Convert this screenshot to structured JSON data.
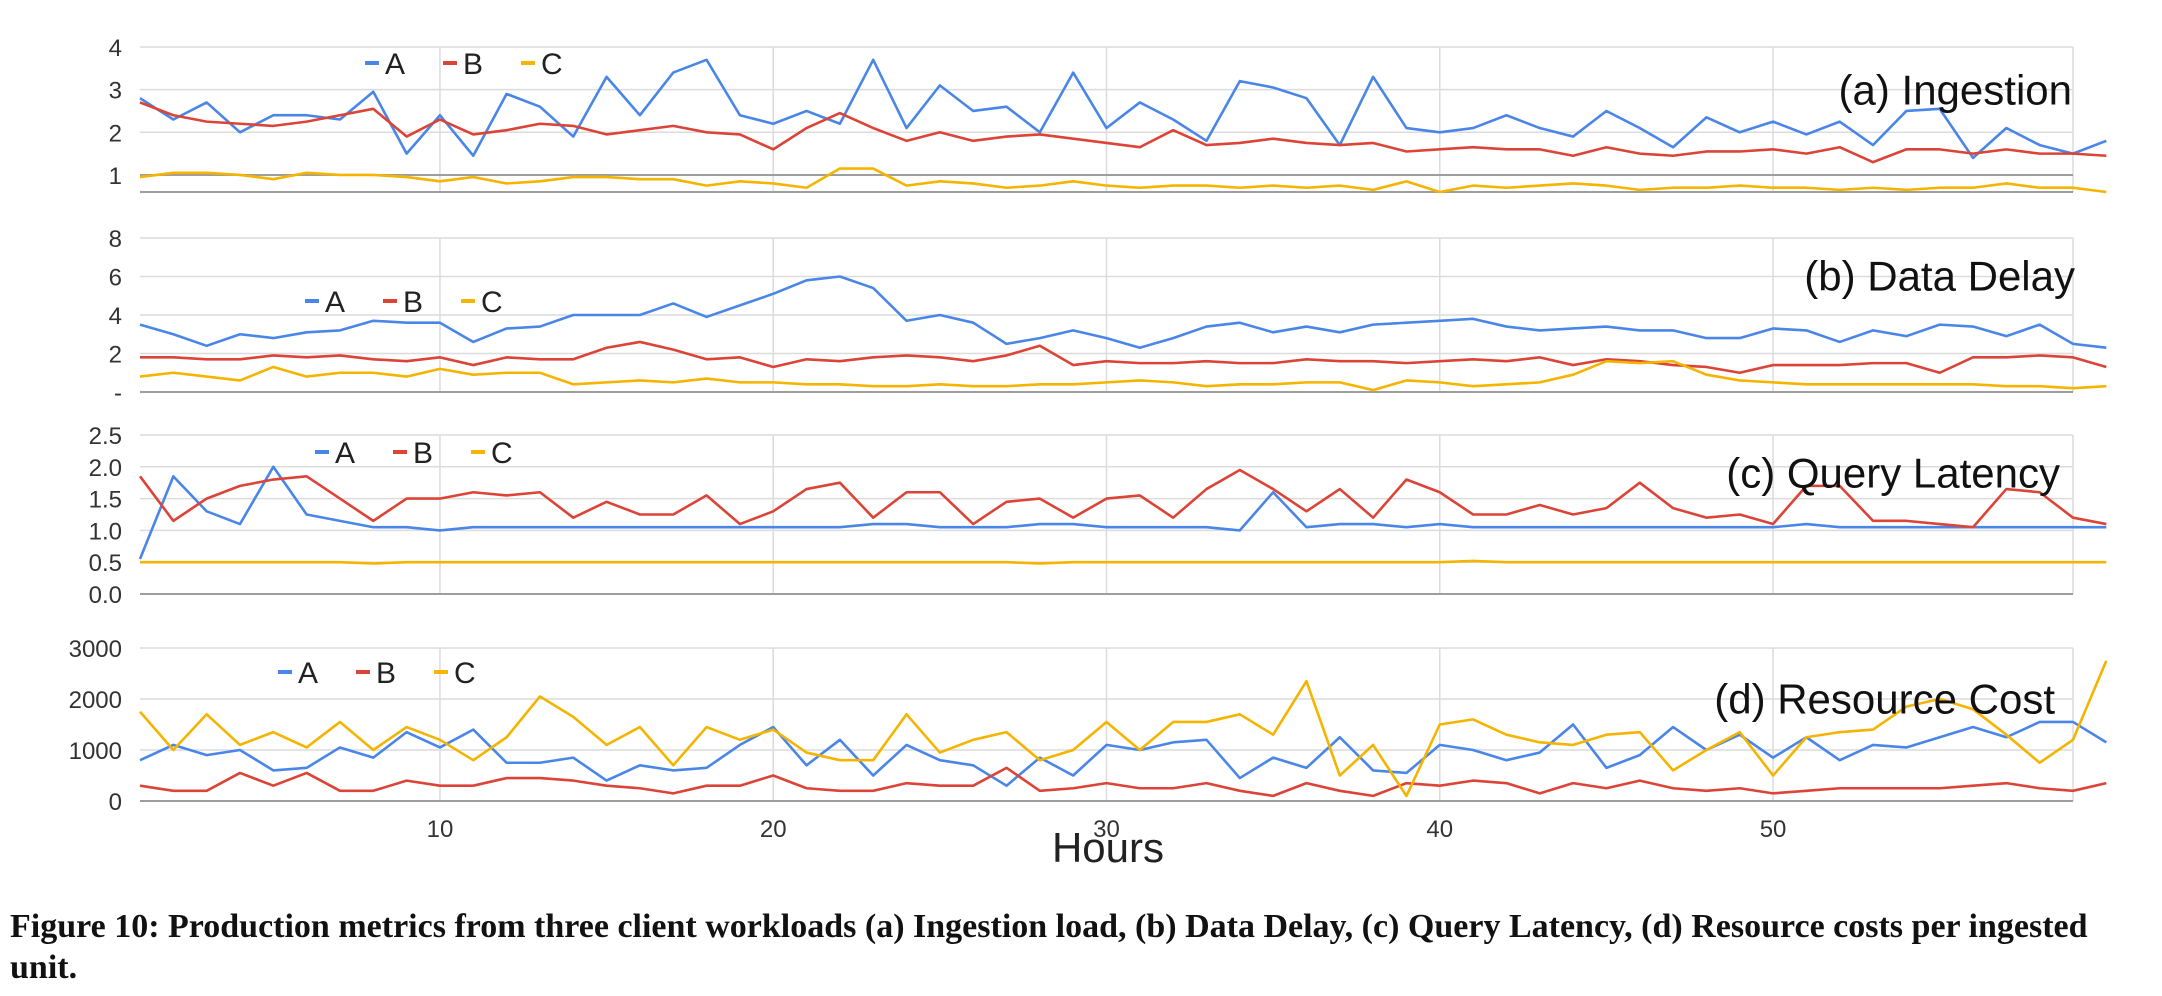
{
  "caption": "Figure 10: Production metrics from three client workloads (a) Ingestion load, (b) Data Delay, (c) Query Latency, (d) Resource costs per ingested unit.",
  "colors": {
    "A": "#4a86e8",
    "B": "#db4437",
    "C": "#f4b400",
    "grid": "#dcdcdc",
    "axis": "#9e9e9e"
  },
  "chart_data": [
    {
      "type": "line",
      "title": "(a) Ingestion",
      "xlabel": "Hours",
      "ylabel": "",
      "xlim": [
        1,
        59
      ],
      "ylim": [
        0.6,
        4
      ],
      "yticks": [
        "4",
        "3",
        "2",
        "1"
      ],
      "ytick_values": [
        4,
        3,
        2,
        1
      ],
      "xticks": [
        10,
        20,
        30,
        40,
        50
      ],
      "grid": true,
      "legend": "top-left",
      "series": [
        {
          "name": "A",
          "values": [
            2.8,
            2.3,
            2.7,
            2.0,
            2.4,
            2.4,
            2.3,
            2.95,
            1.5,
            2.4,
            1.45,
            2.9,
            2.6,
            1.9,
            3.3,
            2.4,
            3.4,
            3.7,
            2.4,
            2.2,
            2.5,
            2.2,
            3.7,
            2.1,
            3.1,
            2.5,
            2.6,
            2.0,
            3.4,
            2.1,
            2.7,
            2.3,
            1.8,
            3.2,
            3.05,
            2.8,
            1.7,
            3.3,
            2.1,
            2.0,
            2.1,
            2.4,
            2.1,
            1.9,
            2.5,
            2.1,
            1.65,
            2.35,
            2.0,
            2.25,
            1.95,
            2.25,
            1.7,
            2.5,
            2.55,
            1.4,
            2.1,
            1.7,
            1.5,
            1.8
          ]
        },
        {
          "name": "B",
          "values": [
            2.7,
            2.4,
            2.25,
            2.2,
            2.15,
            2.25,
            2.4,
            2.55,
            1.9,
            2.3,
            1.95,
            2.05,
            2.2,
            2.15,
            1.95,
            2.05,
            2.15,
            2.0,
            1.95,
            1.6,
            2.1,
            2.45,
            2.1,
            1.8,
            2.0,
            1.8,
            1.9,
            1.95,
            1.85,
            1.75,
            1.65,
            2.05,
            1.7,
            1.75,
            1.85,
            1.75,
            1.7,
            1.75,
            1.55,
            1.6,
            1.65,
            1.6,
            1.6,
            1.45,
            1.65,
            1.5,
            1.45,
            1.55,
            1.55,
            1.6,
            1.5,
            1.65,
            1.3,
            1.6,
            1.6,
            1.5,
            1.6,
            1.5,
            1.5,
            1.45
          ]
        },
        {
          "name": "C",
          "values": [
            0.95,
            1.05,
            1.05,
            1.0,
            0.9,
            1.05,
            1.0,
            1.0,
            0.95,
            0.85,
            0.95,
            0.8,
            0.85,
            0.95,
            0.95,
            0.9,
            0.9,
            0.75,
            0.85,
            0.8,
            0.7,
            1.15,
            1.15,
            0.75,
            0.85,
            0.8,
            0.7,
            0.75,
            0.85,
            0.75,
            0.7,
            0.75,
            0.75,
            0.7,
            0.75,
            0.7,
            0.75,
            0.65,
            0.85,
            0.6,
            0.75,
            0.7,
            0.75,
            0.8,
            0.75,
            0.65,
            0.7,
            0.7,
            0.75,
            0.7,
            0.7,
            0.65,
            0.7,
            0.65,
            0.7,
            0.7,
            0.8,
            0.7,
            0.7,
            0.6
          ]
        }
      ]
    },
    {
      "type": "line",
      "title": "(b) Data Delay",
      "xlabel": "Hours",
      "ylabel": "",
      "xlim": [
        1,
        59
      ],
      "ylim": [
        0,
        8
      ],
      "yticks": [
        "8",
        "6",
        "4",
        "2",
        "-"
      ],
      "ytick_values": [
        8,
        6,
        4,
        2,
        0
      ],
      "xticks": [
        10,
        20,
        30,
        40,
        50
      ],
      "grid": true,
      "legend": "top-left",
      "series": [
        {
          "name": "A",
          "values": [
            3.5,
            3.0,
            2.4,
            3.0,
            2.8,
            3.1,
            3.2,
            3.7,
            3.6,
            3.6,
            2.6,
            3.3,
            3.4,
            4.0,
            4.0,
            4.0,
            4.6,
            3.9,
            4.5,
            5.1,
            5.8,
            6.0,
            5.4,
            3.7,
            4.0,
            3.6,
            2.5,
            2.8,
            3.2,
            2.8,
            2.3,
            2.8,
            3.4,
            3.6,
            3.1,
            3.4,
            3.1,
            3.5,
            3.6,
            3.7,
            3.8,
            3.4,
            3.2,
            3.3,
            3.4,
            3.2,
            3.2,
            2.8,
            2.8,
            3.3,
            3.2,
            2.6,
            3.2,
            2.9,
            3.5,
            3.4,
            2.9,
            3.5,
            2.5,
            2.3
          ]
        },
        {
          "name": "B",
          "values": [
            1.8,
            1.8,
            1.7,
            1.7,
            1.9,
            1.8,
            1.9,
            1.7,
            1.6,
            1.8,
            1.4,
            1.8,
            1.7,
            1.7,
            2.3,
            2.6,
            2.2,
            1.7,
            1.8,
            1.3,
            1.7,
            1.6,
            1.8,
            1.9,
            1.8,
            1.6,
            1.9,
            2.4,
            1.4,
            1.6,
            1.5,
            1.5,
            1.6,
            1.5,
            1.5,
            1.7,
            1.6,
            1.6,
            1.5,
            1.6,
            1.7,
            1.6,
            1.8,
            1.4,
            1.7,
            1.6,
            1.4,
            1.3,
            1.0,
            1.4,
            1.4,
            1.4,
            1.5,
            1.5,
            1.0,
            1.8,
            1.8,
            1.9,
            1.8,
            1.3
          ]
        },
        {
          "name": "C",
          "values": [
            0.8,
            1.0,
            0.8,
            0.6,
            1.3,
            0.8,
            1.0,
            1.0,
            0.8,
            1.2,
            0.9,
            1.0,
            1.0,
            0.4,
            0.5,
            0.6,
            0.5,
            0.7,
            0.5,
            0.5,
            0.4,
            0.4,
            0.3,
            0.3,
            0.4,
            0.3,
            0.3,
            0.4,
            0.4,
            0.5,
            0.6,
            0.5,
            0.3,
            0.4,
            0.4,
            0.5,
            0.5,
            0.1,
            0.6,
            0.5,
            0.3,
            0.4,
            0.5,
            0.9,
            1.6,
            1.5,
            1.6,
            0.9,
            0.6,
            0.5,
            0.4,
            0.4,
            0.4,
            0.4,
            0.4,
            0.4,
            0.3,
            0.3,
            0.2,
            0.3
          ]
        }
      ]
    },
    {
      "type": "line",
      "title": "(c) Query Latency",
      "xlabel": "Hours",
      "ylabel": "",
      "xlim": [
        1,
        59
      ],
      "ylim": [
        0,
        2.5
      ],
      "yticks": [
        "2.5",
        "2.0",
        "1.5",
        "1.0",
        "0.5",
        "0.0"
      ],
      "ytick_values": [
        2.5,
        2.0,
        1.5,
        1.0,
        0.5,
        0.0
      ],
      "xticks": [
        10,
        20,
        30,
        40,
        50
      ],
      "grid": true,
      "legend": "top-left",
      "series": [
        {
          "name": "A",
          "values": [
            0.55,
            1.85,
            1.3,
            1.1,
            2.0,
            1.25,
            1.15,
            1.05,
            1.05,
            1.0,
            1.05,
            1.05,
            1.05,
            1.05,
            1.05,
            1.05,
            1.05,
            1.05,
            1.05,
            1.05,
            1.05,
            1.05,
            1.1,
            1.1,
            1.05,
            1.05,
            1.05,
            1.1,
            1.1,
            1.05,
            1.05,
            1.05,
            1.05,
            1.0,
            1.6,
            1.05,
            1.1,
            1.1,
            1.05,
            1.1,
            1.05,
            1.05,
            1.05,
            1.05,
            1.05,
            1.05,
            1.05,
            1.05,
            1.05,
            1.05,
            1.1,
            1.05,
            1.05,
            1.05,
            1.05,
            1.05,
            1.05,
            1.05,
            1.05,
            1.05
          ]
        },
        {
          "name": "B",
          "values": [
            1.85,
            1.15,
            1.5,
            1.7,
            1.8,
            1.85,
            1.5,
            1.15,
            1.5,
            1.5,
            1.6,
            1.55,
            1.6,
            1.2,
            1.45,
            1.25,
            1.25,
            1.55,
            1.1,
            1.3,
            1.65,
            1.75,
            1.2,
            1.6,
            1.6,
            1.1,
            1.45,
            1.5,
            1.2,
            1.5,
            1.55,
            1.2,
            1.65,
            1.95,
            1.65,
            1.3,
            1.65,
            1.2,
            1.8,
            1.6,
            1.25,
            1.25,
            1.4,
            1.25,
            1.35,
            1.75,
            1.35,
            1.2,
            1.25,
            1.1,
            1.7,
            1.7,
            1.15,
            1.15,
            1.1,
            1.05,
            1.65,
            1.6,
            1.2,
            1.1
          ]
        },
        {
          "name": "C",
          "values": [
            0.5,
            0.5,
            0.5,
            0.5,
            0.5,
            0.5,
            0.5,
            0.48,
            0.5,
            0.5,
            0.5,
            0.5,
            0.5,
            0.5,
            0.5,
            0.5,
            0.5,
            0.5,
            0.5,
            0.5,
            0.5,
            0.5,
            0.5,
            0.5,
            0.5,
            0.5,
            0.5,
            0.48,
            0.5,
            0.5,
            0.5,
            0.5,
            0.5,
            0.5,
            0.5,
            0.5,
            0.5,
            0.5,
            0.5,
            0.5,
            0.52,
            0.5,
            0.5,
            0.5,
            0.5,
            0.5,
            0.5,
            0.5,
            0.5,
            0.5,
            0.5,
            0.5,
            0.5,
            0.5,
            0.5,
            0.5,
            0.5,
            0.5,
            0.5,
            0.5
          ]
        }
      ]
    },
    {
      "type": "line",
      "title": "(d) Resource Cost",
      "xlabel": "Hours",
      "ylabel": "",
      "xlim": [
        1,
        59
      ],
      "ylim": [
        0,
        3000
      ],
      "yticks": [
        "3000",
        "2000",
        "1000",
        "0"
      ],
      "ytick_values": [
        3000,
        2000,
        1000,
        0
      ],
      "xticks": [
        10,
        20,
        30,
        40,
        50
      ],
      "grid": true,
      "legend": "top-left",
      "series": [
        {
          "name": "A",
          "values": [
            800,
            1100,
            900,
            1000,
            600,
            650,
            1050,
            850,
            1350,
            1050,
            1400,
            750,
            750,
            850,
            400,
            700,
            600,
            650,
            1100,
            1450,
            700,
            1200,
            500,
            1100,
            800,
            700,
            300,
            850,
            500,
            1100,
            1000,
            1150,
            1200,
            450,
            850,
            650,
            1250,
            600,
            550,
            1100,
            1000,
            800,
            950,
            1500,
            650,
            900,
            1450,
            1000,
            1300,
            850,
            1250,
            800,
            1100,
            1050,
            1250,
            1450,
            1250,
            1550,
            1550,
            1150
          ]
        },
        {
          "name": "B",
          "values": [
            300,
            200,
            200,
            550,
            300,
            550,
            200,
            200,
            400,
            300,
            300,
            450,
            450,
            400,
            300,
            250,
            150,
            300,
            300,
            500,
            250,
            200,
            200,
            350,
            300,
            300,
            650,
            200,
            250,
            350,
            250,
            250,
            350,
            200,
            100,
            350,
            200,
            100,
            350,
            300,
            400,
            350,
            150,
            350,
            250,
            400,
            250,
            200,
            250,
            150,
            200,
            250,
            250,
            250,
            250,
            300,
            350,
            250,
            200,
            350
          ]
        },
        {
          "name": "C",
          "values": [
            1750,
            1000,
            1700,
            1100,
            1350,
            1050,
            1550,
            1000,
            1450,
            1200,
            800,
            1250,
            2050,
            1650,
            1100,
            1450,
            700,
            1450,
            1200,
            1400,
            950,
            800,
            800,
            1700,
            950,
            1200,
            1350,
            800,
            1000,
            1550,
            1000,
            1550,
            1550,
            1700,
            1300,
            2350,
            500,
            1100,
            100,
            1500,
            1600,
            1300,
            1150,
            1100,
            1300,
            1350,
            600,
            1000,
            1350,
            500,
            1250,
            1350,
            1400,
            1850,
            2000,
            1800,
            1300,
            750,
            1200,
            2750
          ]
        }
      ]
    }
  ]
}
